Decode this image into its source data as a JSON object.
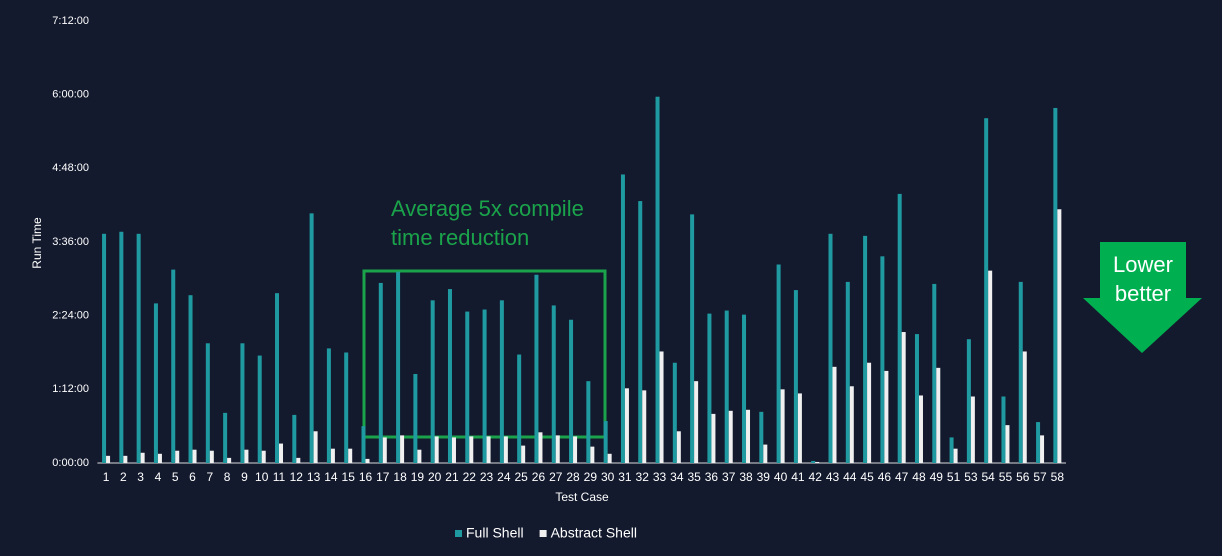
{
  "chart_data": {
    "type": "bar",
    "y_label": "Run Time",
    "x_label": "Test Case",
    "categories": [
      "1",
      "2",
      "3",
      "4",
      "5",
      "6",
      "7",
      "8",
      "9",
      "10",
      "11",
      "12",
      "13",
      "14",
      "15",
      "16",
      "17",
      "18",
      "19",
      "20",
      "21",
      "22",
      "23",
      "24",
      "25",
      "26",
      "27",
      "28",
      "29",
      "30",
      "31",
      "32",
      "33",
      "34",
      "35",
      "36",
      "37",
      "38",
      "39",
      "40",
      "41",
      "42",
      "43",
      "44",
      "45",
      "46",
      "47",
      "48",
      "49",
      "51",
      "53",
      "54",
      "55",
      "56",
      "57",
      "58"
    ],
    "series": [
      {
        "name": "Full Shell",
        "color": "#1f9aa0",
        "values": [
          224,
          226,
          224,
          156,
          189,
          164,
          117,
          49,
          117,
          105,
          166,
          47,
          244,
          112,
          108,
          36,
          176,
          187,
          87,
          159,
          170,
          148,
          150,
          159,
          106,
          184,
          154,
          140,
          80,
          41,
          282,
          256,
          358,
          98,
          243,
          146,
          149,
          145,
          50,
          194,
          169,
          2,
          224,
          177,
          222,
          202,
          263,
          126,
          175,
          25,
          121,
          337,
          65,
          177,
          40,
          347
        ]
      },
      {
        "name": "Abstract Shell",
        "color": "#f0f0f0",
        "values": [
          7,
          7,
          10,
          9,
          12,
          13,
          12,
          5,
          13,
          12,
          19,
          5,
          31,
          14,
          14,
          4,
          25,
          27,
          13,
          26,
          25,
          26,
          26,
          26,
          17,
          30,
          27,
          26,
          16,
          9,
          73,
          71,
          109,
          31,
          80,
          48,
          51,
          52,
          18,
          72,
          68,
          1,
          94,
          75,
          98,
          90,
          128,
          66,
          93,
          14,
          65,
          188,
          37,
          109,
          27,
          248
        ]
      }
    ],
    "ylim": [
      0,
      432
    ],
    "yticks": [
      {
        "value": 0,
        "label": "0:00:00"
      },
      {
        "value": 72,
        "label": "1:12:00"
      },
      {
        "value": 144,
        "label": "2:24:00"
      },
      {
        "value": 216,
        "label": "3:36:00"
      },
      {
        "value": 288,
        "label": "4:48:00"
      },
      {
        "value": 360,
        "label": "6:00:00"
      },
      {
        "value": 432,
        "label": "7:12:00"
      }
    ],
    "legend": "bottom",
    "annotations": [
      {
        "text": "Average 5x compile time reduction",
        "color": "#1aa34a"
      },
      {
        "text": "Lower better",
        "color": "#00b050"
      }
    ]
  }
}
